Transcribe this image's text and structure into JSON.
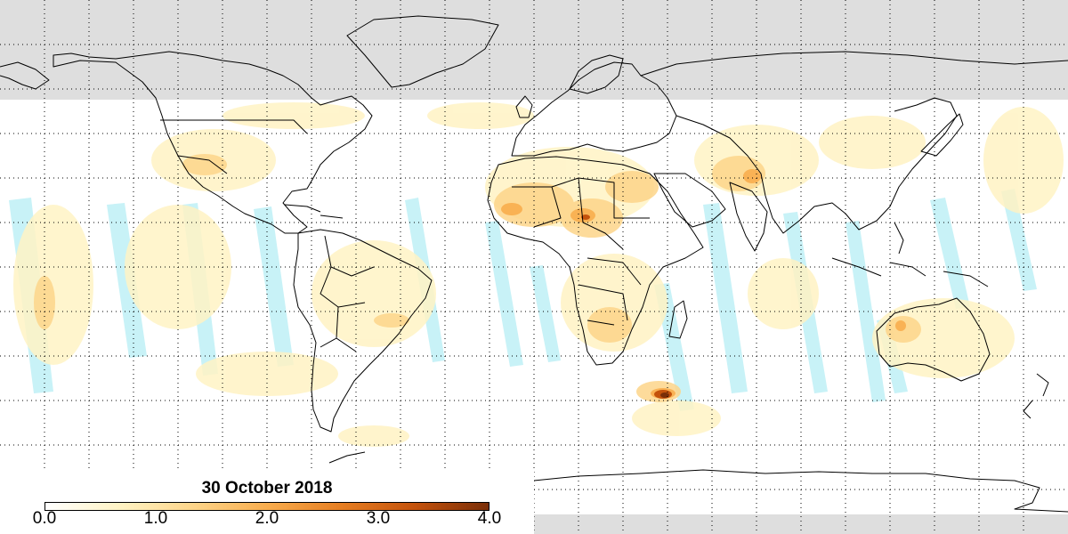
{
  "date_label": "30 October 2018",
  "legend": {
    "ticks": [
      {
        "label": "0.0",
        "value": 0.0
      },
      {
        "label": "1.0",
        "value": 1.0
      },
      {
        "label": "2.0",
        "value": 2.0
      },
      {
        "label": "3.0",
        "value": 3.0
      },
      {
        "label": "4.0",
        "value": 4.0
      }
    ],
    "min": 0.0,
    "max": 4.0,
    "colors": [
      "#ffffff",
      "#fff3c4",
      "#fdd58a",
      "#f8ad4e",
      "#e67e22",
      "#c4520c",
      "#7a2e08"
    ]
  },
  "colors": {
    "no_data": "#dedede",
    "missing_swath": "#c8f2f7",
    "coastline": "#000000",
    "grid": "#000000"
  },
  "grid": {
    "dotted": true,
    "lon_step_deg": 20,
    "lat_step_deg": 10
  }
}
